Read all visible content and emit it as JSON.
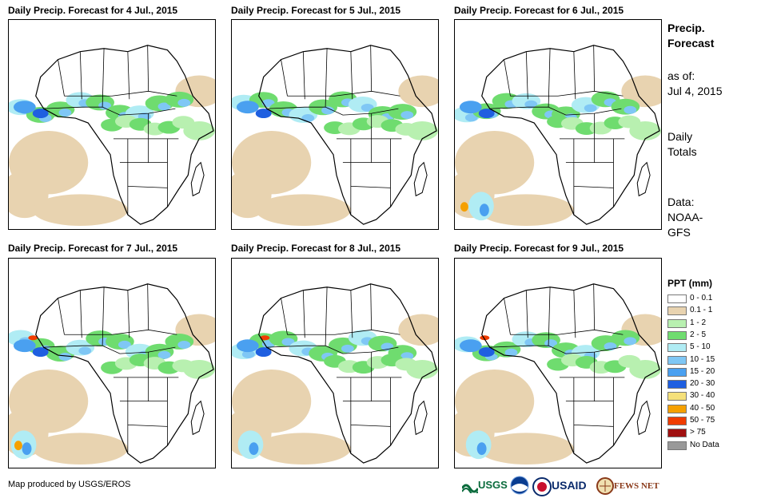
{
  "panels": [
    {
      "title": "Daily Precip. Forecast for 4 Jul., 2015"
    },
    {
      "title": "Daily Precip. Forecast for 5 Jul., 2015"
    },
    {
      "title": "Daily Precip. Forecast for 6 Jul., 2015"
    },
    {
      "title": "Daily Precip. Forecast for 7 Jul., 2015"
    },
    {
      "title": "Daily Precip. Forecast for 8 Jul., 2015"
    },
    {
      "title": "Daily Precip. Forecast for 9 Jul., 2015"
    }
  ],
  "info": {
    "title_line1": "Precip.",
    "title_line2": "Forecast",
    "asof_line1": "as of:",
    "asof_line2": "Jul 4, 2015",
    "totals_line1": "Daily",
    "totals_line2": "Totals",
    "data_line1": "Data:",
    "data_line2": "NOAA-",
    "data_line3": "GFS"
  },
  "legend": {
    "title": "PPT (mm)",
    "items": [
      {
        "label": "0 - 0.1",
        "color": "#ffffff"
      },
      {
        "label": "0.1 - 1",
        "color": "#e8d3b0"
      },
      {
        "label": "1 - 2",
        "color": "#b8f0b0"
      },
      {
        "label": "2 - 5",
        "color": "#6fdc6f"
      },
      {
        "label": "5 - 10",
        "color": "#b0ecf4"
      },
      {
        "label": "10 - 15",
        "color": "#7fc7f5"
      },
      {
        "label": "15 - 20",
        "color": "#4aa0f0"
      },
      {
        "label": "20 - 30",
        "color": "#1f5fe0"
      },
      {
        "label": "30 - 40",
        "color": "#f5e07a"
      },
      {
        "label": "40 - 50",
        "color": "#f5a000"
      },
      {
        "label": "50 - 75",
        "color": "#f03c00"
      },
      {
        "label": "> 75",
        "color": "#a01010"
      },
      {
        "label": "No Data",
        "color": "#999999"
      }
    ]
  },
  "footer": {
    "credit": "Map produced by USGS/EROS",
    "logos": [
      "USGS",
      "NOAA",
      "USAID",
      "FEWS NET"
    ]
  }
}
